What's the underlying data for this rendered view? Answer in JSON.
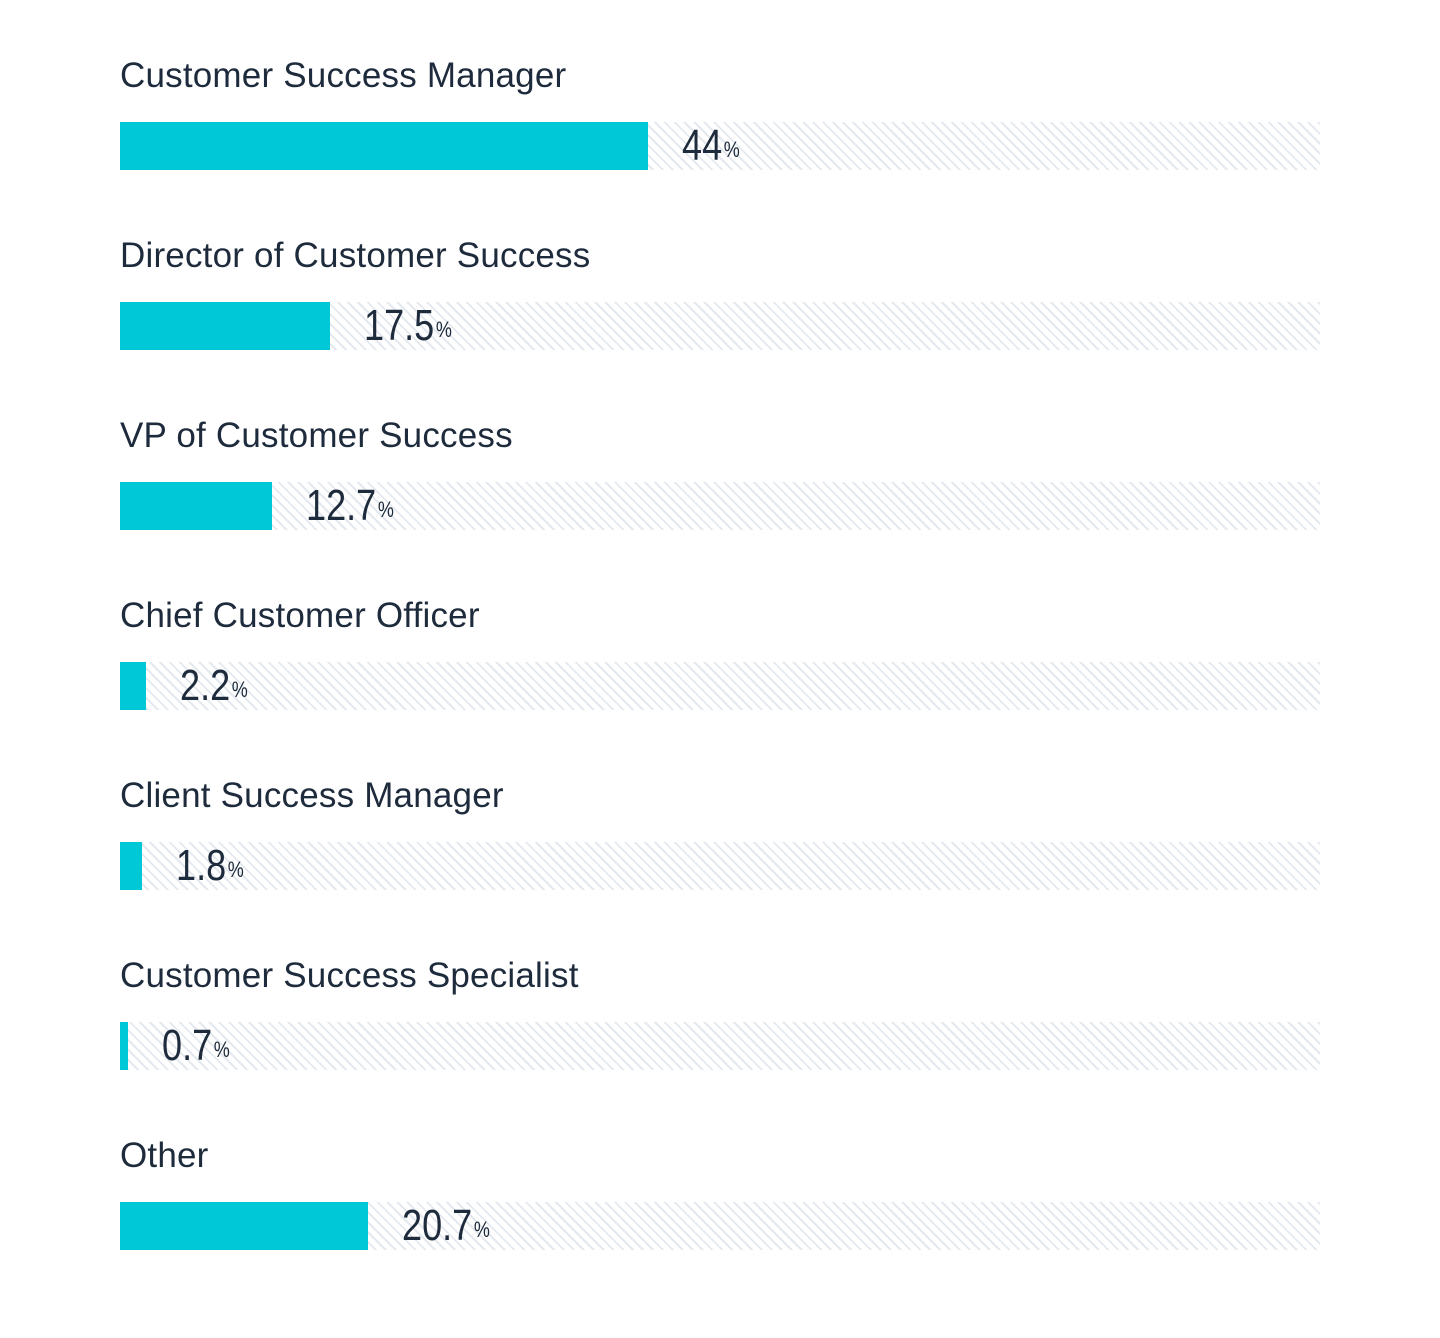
{
  "chart_data": {
    "type": "bar",
    "orientation": "horizontal",
    "categories": [
      "Customer Success Manager",
      "Director of Customer Success",
      "VP of Customer Success",
      "Chief Customer Officer",
      "Client Success Manager",
      "Customer Success Specialist",
      "Other"
    ],
    "values": [
      44,
      17.5,
      12.7,
      2.2,
      1.8,
      0.7,
      20.7
    ],
    "value_labels": [
      "44",
      "17.5",
      "12.7",
      "2.2",
      "1.8",
      "0.7",
      "20.7"
    ],
    "unit": "%",
    "xlim": [
      0,
      100
    ],
    "grid": false,
    "bar_color": "#00c8d7",
    "track_pattern": "diagonal hatch",
    "track_color": "#e4e9ef"
  }
}
